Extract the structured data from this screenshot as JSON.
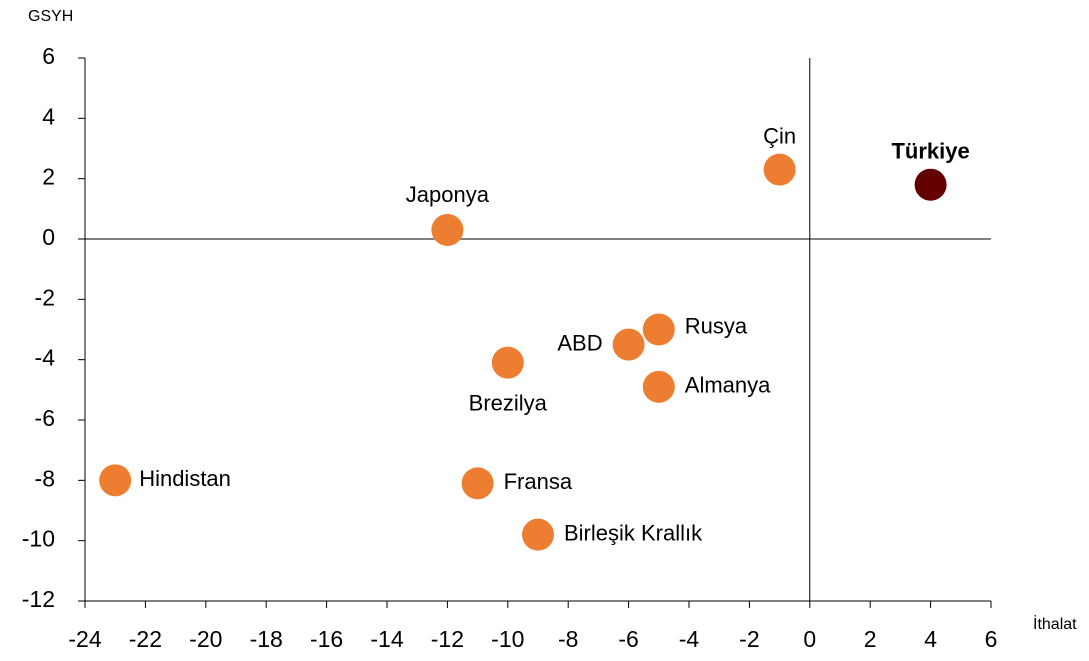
{
  "chart_data": {
    "type": "scatter",
    "x_label": "İthalat",
    "y_label": "GSYH",
    "labels": [
      "Japonya",
      "Çin",
      "Türkiye",
      "Rusya",
      "ABD",
      "Almanya",
      "Brezilya",
      "Hindistan",
      "Fransa",
      "Birleşik Krallık"
    ],
    "x": [
      -12,
      -1,
      4,
      -5,
      -6,
      -5,
      -10,
      -23,
      -11,
      -9
    ],
    "values": [
      0.3,
      2.3,
      1.8,
      -3,
      -3.5,
      -4.9,
      -4.1,
      -8,
      -8.1,
      -9.8
    ],
    "colors": [
      "#ED7D31",
      "#ED7D31",
      "#630000",
      "#ED7D31",
      "#ED7D31",
      "#ED7D31",
      "#ED7D31",
      "#ED7D31",
      "#ED7D31",
      "#ED7D31"
    ],
    "xlim": [
      -24,
      6
    ],
    "xticks": [
      -24,
      -22,
      -20,
      -18,
      -16,
      -14,
      -12,
      -10,
      -8,
      -6,
      -4,
      -2,
      0,
      2,
      4,
      6
    ],
    "ylim": [
      -12,
      6
    ],
    "yticks": [
      -12,
      -10,
      -8,
      -6,
      -4,
      -2,
      0,
      2,
      4,
      6
    ]
  }
}
